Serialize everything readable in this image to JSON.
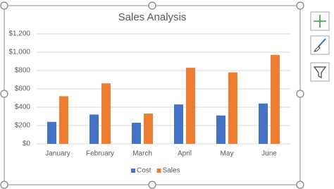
{
  "chart_data": {
    "type": "bar",
    "title": "Sales Analysis",
    "categories": [
      "January",
      "February",
      "March",
      "April",
      "May",
      "June"
    ],
    "series": [
      {
        "name": "Cost",
        "color": "#4472c4",
        "values": [
          240,
          320,
          230,
          430,
          310,
          440
        ]
      },
      {
        "name": "Sales",
        "color": "#ed7d31",
        "values": [
          520,
          660,
          330,
          830,
          780,
          970
        ]
      }
    ],
    "ylim": [
      0,
      1200
    ],
    "yticks": [
      {
        "value": 0,
        "label": "$0"
      },
      {
        "value": 200,
        "label": "$200"
      },
      {
        "value": 400,
        "label": "$400"
      },
      {
        "value": 600,
        "label": "$600"
      },
      {
        "value": 800,
        "label": "$800"
      },
      {
        "value": 1000,
        "label": "$1,000"
      },
      {
        "value": 1200,
        "label": "$1,200"
      }
    ],
    "grid": true,
    "legend": "bottom"
  }
}
